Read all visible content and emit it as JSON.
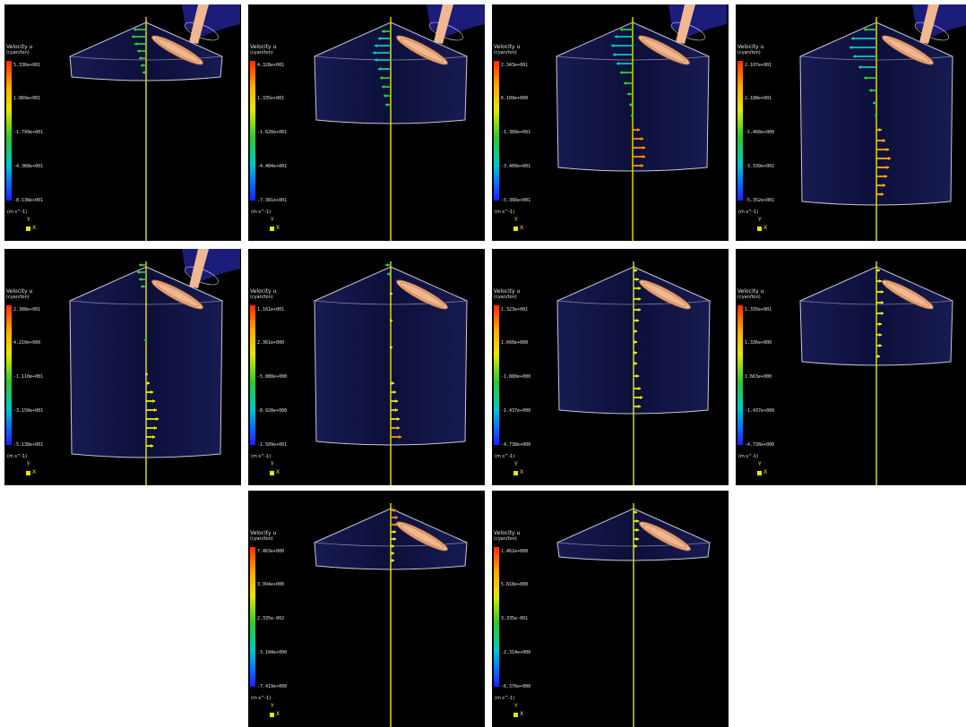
{
  "colors": {
    "background": "#ffffff",
    "panel": "#000000",
    "axis": "#e8e800",
    "cylinder_outline": "#c8c8d8",
    "cylinder_fill": "#1a1e5a",
    "valve": "#f0b890",
    "port": "#1c1c7a"
  },
  "legend_title": "Velocity  u",
  "legend_sub": "(cyan/ton)",
  "units": "(m s^-1)",
  "axis_y": "Y",
  "axis_x": "X",
  "panels": [
    {
      "ticks": [
        "5.336e+001",
        "1.869e+001",
        "-1.799e+001",
        "-4.368e+001",
        "-8.138e+001"
      ]
    },
    {
      "ticks": [
        "4.328e+001",
        "1.335e+001",
        "-1.620e+001",
        "-4.404e+001",
        "-7.381e+001"
      ]
    },
    {
      "ticks": [
        "2.343e+001",
        "6.109e+000",
        "-1.389e+001",
        "-3.409e+001",
        "-5.366e+001"
      ]
    },
    {
      "ticks": [
        "2.107e+001",
        "2.188e+001",
        "-5.468e+000",
        "-3.339e+001",
        "-5.352e+001"
      ]
    },
    {
      "ticks": [
        "2.388e+001",
        "4.210e+000",
        "-1.110e+001",
        "-3.150e+001",
        "-5.138e+001"
      ]
    },
    {
      "ticks": [
        "1.161e+001",
        "2.361e+000",
        "-5.888e+000",
        "-8.928e+000",
        "-1.509e+001"
      ]
    },
    {
      "ticks": [
        "1.323e+001",
        "1.660e+000",
        "-1.880e+000",
        "-1.437e+000",
        "-4.738e+000"
      ]
    },
    {
      "ticks": [
        "1.335e+001",
        "1.336e+000",
        "1.663e+000",
        "-1.437e+000",
        "-4.738e+000"
      ]
    },
    {
      "ticks": [
        "7.463e+000",
        "3.994e+000",
        "2.335e-002",
        "-3.104e+000",
        "-7.419e+000"
      ]
    },
    {
      "ticks": [
        "1.462e+000",
        "5.818e+000",
        "3.335e-001",
        "-2.314e+000",
        "-6.376e+000"
      ]
    }
  ]
}
